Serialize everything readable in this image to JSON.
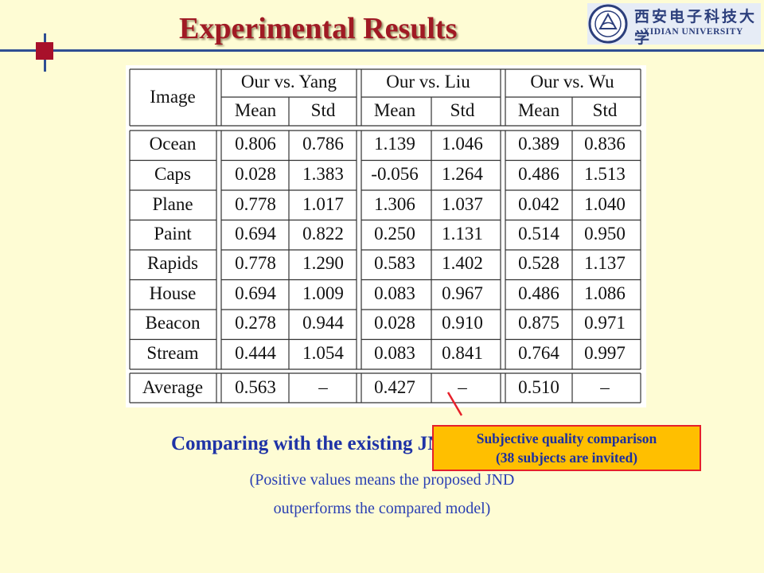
{
  "header": {
    "title": "Experimental Results",
    "university_cn": "西安电子科技大学",
    "university_en": "XIDIAN UNIVERSITY"
  },
  "table": {
    "row_header": "Image",
    "groups": [
      "Our vs. Yang",
      "Our vs. Liu",
      "Our vs. Wu"
    ],
    "subheaders": [
      "Mean",
      "Std"
    ],
    "rows": [
      {
        "image": "Ocean",
        "values": [
          "0.806",
          "0.786",
          "1.139",
          "1.046",
          "0.389",
          "0.836"
        ]
      },
      {
        "image": "Caps",
        "values": [
          "0.028",
          "1.383",
          "-0.056",
          "1.264",
          "0.486",
          "1.513"
        ]
      },
      {
        "image": "Plane",
        "values": [
          "0.778",
          "1.017",
          "1.306",
          "1.037",
          "0.042",
          "1.040"
        ]
      },
      {
        "image": "Paint",
        "values": [
          "0.694",
          "0.822",
          "0.250",
          "1.131",
          "0.514",
          "0.950"
        ]
      },
      {
        "image": "Rapids",
        "values": [
          "0.778",
          "1.290",
          "0.583",
          "1.402",
          "0.528",
          "1.137"
        ]
      },
      {
        "image": "House",
        "values": [
          "0.694",
          "1.009",
          "0.083",
          "0.967",
          "0.486",
          "1.086"
        ]
      },
      {
        "image": "Beacon",
        "values": [
          "0.278",
          "0.944",
          "0.028",
          "0.910",
          "0.875",
          "0.971"
        ]
      },
      {
        "image": "Stream",
        "values": [
          "0.444",
          "1.054",
          "0.083",
          "0.841",
          "0.764",
          "0.997"
        ]
      }
    ],
    "average": {
      "image": "Average",
      "values": [
        "0.563",
        "–",
        "0.427",
        "–",
        "0.510",
        "–"
      ]
    }
  },
  "caption": {
    "main": "Comparing with the existing JND models",
    "note_line1": "(Positive values means the proposed JND",
    "note_line2": "outperforms the compared model)"
  },
  "callout": {
    "line1": "Subjective quality comparison",
    "line2": "(38 subjects are invited)"
  }
}
